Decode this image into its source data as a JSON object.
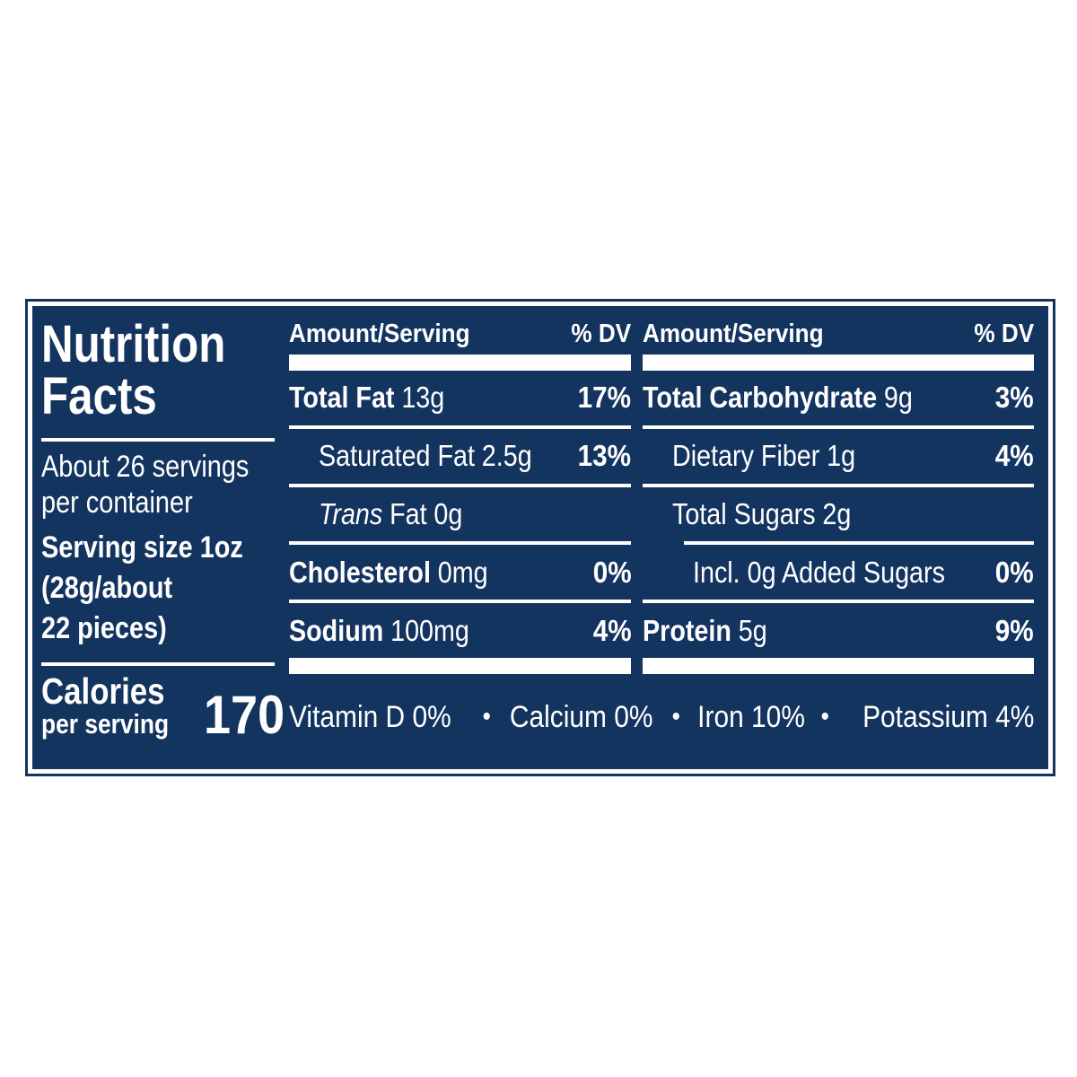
{
  "colors": {
    "navy": "#143460",
    "white": "#ffffff"
  },
  "left_panel": {
    "title_line1": "Nutrition",
    "title_line2": "Facts",
    "servings_line1": "About 26 servings",
    "servings_line2": "per container",
    "serving_size_line1": "Serving size 1oz",
    "serving_size_line2": "(28g/about",
    "serving_size_line3": "22 pieces)",
    "calories_line1": "Calories",
    "calories_line2": "per serving",
    "calories_value": "170"
  },
  "columns": [
    {
      "header_amount": "Amount/Serving",
      "header_dv": "% DV",
      "rows": [
        {
          "name": "Total Fat",
          "amount": "13g",
          "dv": "17%"
        },
        {
          "name": "Saturated Fat",
          "amount": "2.5g",
          "dv": "13%"
        },
        {
          "name_italic": "Trans",
          "name_rest": "Fat",
          "amount": "0g",
          "dv": ""
        },
        {
          "name": "Cholesterol",
          "amount": "0mg",
          "dv": "0%"
        },
        {
          "name": "Sodium",
          "amount": "100mg",
          "dv": "4%"
        }
      ]
    },
    {
      "header_amount": "Amount/Serving",
      "header_dv": "% DV",
      "rows": [
        {
          "name": "Total Carbohydrate",
          "amount": "9g",
          "dv": "3%"
        },
        {
          "name": "Dietary Fiber",
          "amount": "1g",
          "dv": "4%"
        },
        {
          "name": "Total Sugars",
          "amount": "2g",
          "dv": ""
        },
        {
          "name": "Incl. 0g Added Sugars",
          "amount": "",
          "dv": "0%"
        },
        {
          "name": "Protein",
          "amount": "5g",
          "dv": "9%"
        }
      ]
    }
  ],
  "footer": {
    "separator": "•",
    "items": [
      "Vitamin D 0%",
      "Calcium 0%",
      "Iron 10%",
      "Potassium 4%"
    ]
  }
}
